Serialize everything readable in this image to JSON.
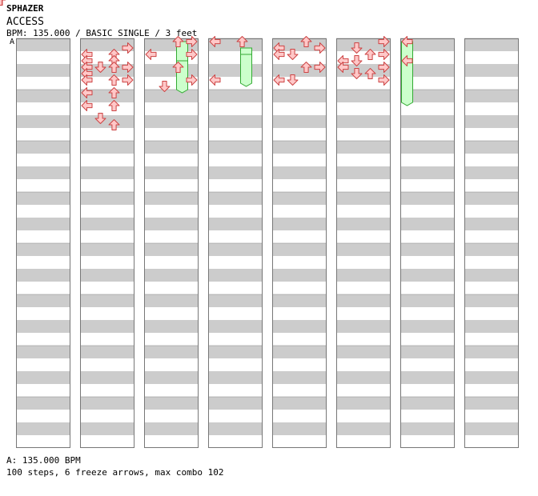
{
  "header": {
    "artist": "SPHAZER",
    "title": "ACCESS",
    "info": "BPM: 135.000 / BASIC SINGLE / 3 feet",
    "bpm_marker": "A"
  },
  "footer": {
    "bpm_legend": "A: 135.000 BPM",
    "stats": "100 steps, 6 freeze arrows, max combo 102"
  },
  "colors": {
    "band": "#cccccc",
    "arrow_fill": "#ffc8c8",
    "arrow_stroke": "#cc4444",
    "freeze_fill": "#ccffcc",
    "freeze_stroke": "#33aa33"
  },
  "chart_data": {
    "type": "step-chart",
    "columns": 8,
    "measures_per_column": 8,
    "rows_per_measure": 4,
    "lanes": [
      "left",
      "down",
      "up",
      "right"
    ],
    "steps": [
      [
        1,
        5,
        1
      ],
      [
        1,
        5,
        3
      ],
      [
        1,
        6,
        1
      ],
      [
        1,
        6,
        3
      ],
      [
        1,
        6,
        5
      ],
      [
        1,
        6,
        7
      ],
      [
        1,
        7,
        1
      ],
      [
        1,
        7,
        3
      ],
      [
        1,
        7,
        5
      ],
      [
        1,
        8,
        1
      ],
      [
        1,
        8,
        3
      ],
      [
        2,
        1,
        3
      ],
      [
        2,
        1,
        4
      ],
      [
        2,
        1,
        5
      ],
      [
        2,
        1,
        6
      ],
      [
        2,
        1,
        7
      ],
      [
        2,
        1,
        9
      ],
      [
        2,
        1,
        11
      ],
      [
        2,
        2,
        5
      ],
      [
        2,
        2,
        13
      ],
      [
        2,
        3,
        3
      ],
      [
        2,
        3,
        4
      ],
      [
        2,
        3,
        5
      ],
      [
        2,
        3,
        7
      ],
      [
        2,
        3,
        9
      ],
      [
        2,
        3,
        11
      ],
      [
        2,
        3,
        14
      ],
      [
        2,
        4,
        2
      ],
      [
        2,
        4,
        5
      ],
      [
        2,
        4,
        7
      ],
      [
        2,
        5,
        1
      ],
      [
        2,
        5,
        3
      ],
      [
        2,
        5,
        5
      ],
      [
        2,
        6,
        1
      ],
      [
        2,
        6,
        3
      ],
      [
        2,
        6,
        5
      ],
      [
        2,
        6,
        8
      ],
      [
        2,
        7,
        1
      ],
      [
        2,
        7,
        3
      ],
      [
        2,
        7,
        5
      ],
      [
        2,
        7,
        7
      ],
      [
        2,
        8,
        3
      ],
      [
        2,
        8,
        5
      ],
      [
        2,
        8,
        7
      ],
      [
        3,
        1,
        3
      ],
      [
        3,
        2,
        8
      ],
      [
        3,
        3,
        1
      ],
      [
        3,
        3,
        5
      ],
      [
        3,
        4,
        1
      ],
      [
        3,
        4,
        3
      ],
      [
        3,
        4,
        7
      ],
      [
        3,
        6,
        3
      ],
      [
        3,
        6,
        5
      ],
      [
        3,
        7,
        1
      ],
      [
        3,
        7,
        3
      ],
      [
        3,
        7,
        7
      ],
      [
        3,
        8,
        1
      ],
      [
        3,
        8,
        5
      ],
      [
        4,
        1,
        1
      ],
      [
        4,
        1,
        7
      ],
      [
        4,
        3,
        1
      ],
      [
        4,
        5,
        1
      ],
      [
        4,
        5,
        7
      ],
      [
        4,
        6,
        1
      ],
      [
        4,
        6,
        7
      ],
      [
        4,
        7,
        1
      ],
      [
        4,
        7,
        7
      ],
      [
        5,
        1,
        2
      ],
      [
        5,
        1,
        3
      ],
      [
        5,
        1,
        7
      ],
      [
        5,
        2,
        3
      ],
      [
        5,
        2,
        7
      ],
      [
        5,
        3,
        1
      ],
      [
        5,
        3,
        5
      ],
      [
        5,
        4,
        2
      ],
      [
        5,
        4,
        5
      ],
      [
        5,
        5,
        1
      ],
      [
        5,
        5,
        5
      ],
      [
        5,
        6,
        5
      ],
      [
        5,
        7,
        2
      ],
      [
        5,
        7,
        5
      ],
      [
        6,
        1,
        4
      ],
      [
        6,
        1,
        5
      ],
      [
        6,
        2,
        2
      ],
      [
        6,
        2,
        4
      ],
      [
        6,
        2,
        6
      ],
      [
        6,
        3,
        3
      ],
      [
        6,
        3,
        6
      ],
      [
        6,
        4,
        1
      ],
      [
        6,
        4,
        3
      ],
      [
        6,
        4,
        5
      ],
      [
        6,
        4,
        7
      ]
    ],
    "freezes": [
      [
        7,
        1,
        1,
        4
      ],
      [
        7,
        1,
        4,
        4
      ],
      [
        2,
        8,
        1,
        3
      ],
      [
        2,
        8,
        4,
        3
      ],
      [
        3,
        8,
        2,
        3
      ],
      [
        3,
        8,
        3,
        3
      ]
    ],
    "bpm_changes": [
      {
        "marker": "A",
        "bpm": 135.0
      }
    ]
  }
}
